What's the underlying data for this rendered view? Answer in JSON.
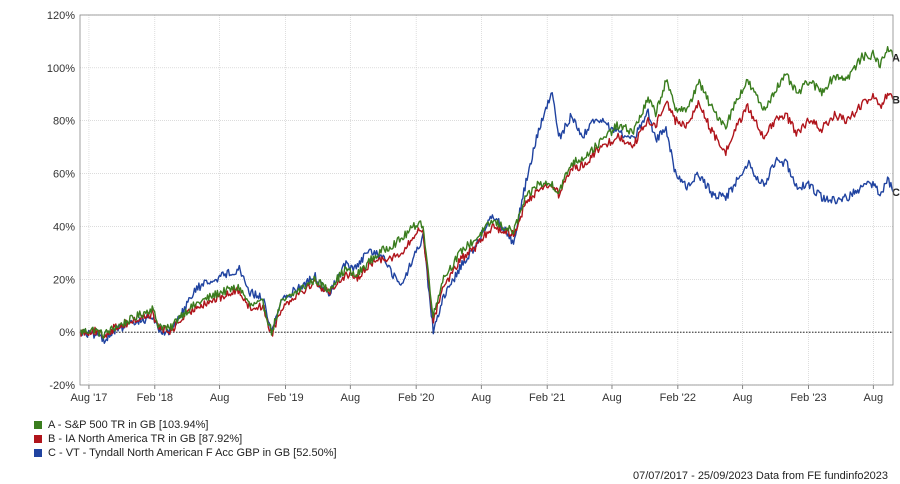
{
  "chart_data": {
    "type": "line",
    "x_ticks": [
      "Aug '17",
      "Feb '18",
      "Aug",
      "Feb '19",
      "Aug",
      "Feb '20",
      "Aug",
      "Feb '21",
      "Aug",
      "Feb '22",
      "Aug",
      "Feb '23",
      "Aug"
    ],
    "y_ticks": [
      "120%",
      "100%",
      "80%",
      "60%",
      "40%",
      "20%",
      "0%",
      "-20%"
    ],
    "ylim": [
      -20,
      120
    ],
    "x_range": [
      "2017-07-07",
      "2023-09-25"
    ],
    "grid": true,
    "legend_position": "bottom-left",
    "series": [
      {
        "name": "A - S&P 500 TR in GB [103.94%]",
        "end_label": "A",
        "color": "#3a7d1e",
        "points": [
          [
            "2017-07-07",
            0
          ],
          [
            "2017-08-15",
            1
          ],
          [
            "2017-09-10",
            -1
          ],
          [
            "2017-10-15",
            2
          ],
          [
            "2017-11-30",
            5
          ],
          [
            "2018-01-25",
            9
          ],
          [
            "2018-02-10",
            3
          ],
          [
            "2018-03-15",
            1
          ],
          [
            "2018-04-10",
            6
          ],
          [
            "2018-06-01",
            11
          ],
          [
            "2018-08-01",
            15
          ],
          [
            "2018-09-25",
            17
          ],
          [
            "2018-10-25",
            10
          ],
          [
            "2018-11-30",
            11
          ],
          [
            "2018-12-24",
            0
          ],
          [
            "2019-01-20",
            11
          ],
          [
            "2019-03-01",
            15
          ],
          [
            "2019-04-25",
            20
          ],
          [
            "2019-05-30",
            16
          ],
          [
            "2019-07-20",
            24
          ],
          [
            "2019-08-15",
            21
          ],
          [
            "2019-09-25",
            27
          ],
          [
            "2019-11-01",
            31
          ],
          [
            "2019-12-20",
            35
          ],
          [
            "2020-02-10",
            42
          ],
          [
            "2020-02-20",
            40
          ],
          [
            "2020-03-20",
            6
          ],
          [
            "2020-04-15",
            20
          ],
          [
            "2020-06-08",
            31
          ],
          [
            "2020-07-15",
            35
          ],
          [
            "2020-09-01",
            42
          ],
          [
            "2020-10-30",
            38
          ],
          [
            "2020-12-01",
            50
          ],
          [
            "2021-01-05",
            56
          ],
          [
            "2021-02-15",
            56
          ],
          [
            "2021-03-05",
            53
          ],
          [
            "2021-04-10",
            64
          ],
          [
            "2021-05-12",
            66
          ],
          [
            "2021-06-15",
            70
          ],
          [
            "2021-08-15",
            78
          ],
          [
            "2021-09-30",
            76
          ],
          [
            "2021-11-10",
            88
          ],
          [
            "2021-12-01",
            83
          ],
          [
            "2021-12-30",
            95
          ],
          [
            "2022-01-25",
            85
          ],
          [
            "2022-03-01",
            84
          ],
          [
            "2022-03-30",
            95
          ],
          [
            "2022-05-10",
            84
          ],
          [
            "2022-06-15",
            78
          ],
          [
            "2022-07-15",
            88
          ],
          [
            "2022-08-15",
            95
          ],
          [
            "2022-09-30",
            84
          ],
          [
            "2022-11-01",
            92
          ],
          [
            "2022-12-01",
            97
          ],
          [
            "2023-01-01",
            90
          ],
          [
            "2023-02-01",
            95
          ],
          [
            "2023-03-10",
            91
          ],
          [
            "2023-04-15",
            97
          ],
          [
            "2023-05-20",
            96
          ],
          [
            "2023-06-30",
            104
          ],
          [
            "2023-07-31",
            105
          ],
          [
            "2023-08-20",
            101
          ],
          [
            "2023-09-10",
            108
          ],
          [
            "2023-09-25",
            104
          ]
        ]
      },
      {
        "name": "B - IA North America TR in GB [87.92%]",
        "end_label": "B",
        "color": "#b0141b",
        "points": [
          [
            "2017-07-07",
            0
          ],
          [
            "2017-08-15",
            0.5
          ],
          [
            "2017-09-10",
            -1.5
          ],
          [
            "2017-10-15",
            2
          ],
          [
            "2017-11-30",
            4
          ],
          [
            "2018-01-25",
            7
          ],
          [
            "2018-02-10",
            2
          ],
          [
            "2018-03-15",
            0
          ],
          [
            "2018-04-10",
            4
          ],
          [
            "2018-06-01",
            10
          ],
          [
            "2018-08-01",
            13
          ],
          [
            "2018-09-25",
            16
          ],
          [
            "2018-10-25",
            9
          ],
          [
            "2018-11-30",
            10
          ],
          [
            "2018-12-24",
            -1
          ],
          [
            "2019-01-20",
            9
          ],
          [
            "2019-03-01",
            14
          ],
          [
            "2019-04-25",
            19
          ],
          [
            "2019-05-30",
            15
          ],
          [
            "2019-07-20",
            22
          ],
          [
            "2019-08-15",
            20
          ],
          [
            "2019-09-25",
            26
          ],
          [
            "2019-11-01",
            28
          ],
          [
            "2019-12-20",
            29
          ],
          [
            "2020-02-10",
            39
          ],
          [
            "2020-02-20",
            38
          ],
          [
            "2020-03-20",
            4
          ],
          [
            "2020-04-15",
            17
          ],
          [
            "2020-06-08",
            28
          ],
          [
            "2020-07-15",
            32
          ],
          [
            "2020-09-01",
            40
          ],
          [
            "2020-10-30",
            37
          ],
          [
            "2020-12-01",
            48
          ],
          [
            "2021-01-05",
            54
          ],
          [
            "2021-02-15",
            56
          ],
          [
            "2021-03-05",
            52
          ],
          [
            "2021-04-10",
            62
          ],
          [
            "2021-05-12",
            63
          ],
          [
            "2021-06-15",
            68
          ],
          [
            "2021-08-15",
            74
          ],
          [
            "2021-09-30",
            71
          ],
          [
            "2021-11-10",
            80
          ],
          [
            "2021-12-01",
            78
          ],
          [
            "2021-12-30",
            88
          ],
          [
            "2022-01-25",
            80
          ],
          [
            "2022-03-01",
            78
          ],
          [
            "2022-03-30",
            87
          ],
          [
            "2022-05-10",
            75
          ],
          [
            "2022-06-15",
            68
          ],
          [
            "2022-07-15",
            78
          ],
          [
            "2022-08-15",
            85
          ],
          [
            "2022-09-30",
            74
          ],
          [
            "2022-11-01",
            80
          ],
          [
            "2022-12-01",
            82
          ],
          [
            "2023-01-01",
            75
          ],
          [
            "2023-02-01",
            80
          ],
          [
            "2023-03-10",
            77
          ],
          [
            "2023-04-15",
            82
          ],
          [
            "2023-05-20",
            80
          ],
          [
            "2023-06-30",
            86
          ],
          [
            "2023-07-31",
            89
          ],
          [
            "2023-08-20",
            85
          ],
          [
            "2023-09-10",
            90
          ],
          [
            "2023-09-25",
            88
          ]
        ]
      },
      {
        "name": "C - VT - Tyndall North American F Acc GBP in GB [52.50%]",
        "end_label": "C",
        "color": "#2043a0",
        "points": [
          [
            "2017-07-07",
            0
          ],
          [
            "2017-08-15",
            -1
          ],
          [
            "2017-09-10",
            -3
          ],
          [
            "2017-10-15",
            1
          ],
          [
            "2017-11-30",
            3
          ],
          [
            "2018-01-25",
            6
          ],
          [
            "2018-02-10",
            1
          ],
          [
            "2018-03-15",
            0
          ],
          [
            "2018-04-10",
            6
          ],
          [
            "2018-06-01",
            17
          ],
          [
            "2018-08-01",
            21
          ],
          [
            "2018-09-25",
            24
          ],
          [
            "2018-10-25",
            15
          ],
          [
            "2018-11-30",
            13
          ],
          [
            "2018-12-24",
            0
          ],
          [
            "2019-01-20",
            12
          ],
          [
            "2019-03-01",
            16
          ],
          [
            "2019-04-25",
            21
          ],
          [
            "2019-05-30",
            14
          ],
          [
            "2019-07-20",
            26
          ],
          [
            "2019-08-15",
            24
          ],
          [
            "2019-09-25",
            31
          ],
          [
            "2019-11-01",
            28
          ],
          [
            "2019-12-20",
            17
          ],
          [
            "2020-02-10",
            33
          ],
          [
            "2020-02-20",
            36
          ],
          [
            "2020-03-20",
            0
          ],
          [
            "2020-04-15",
            12
          ],
          [
            "2020-06-08",
            26
          ],
          [
            "2020-07-15",
            32
          ],
          [
            "2020-09-01",
            45
          ],
          [
            "2020-10-30",
            34
          ],
          [
            "2020-12-01",
            55
          ],
          [
            "2021-01-05",
            75
          ],
          [
            "2021-02-15",
            91
          ],
          [
            "2021-03-05",
            73
          ],
          [
            "2021-04-10",
            82
          ],
          [
            "2021-05-12",
            74
          ],
          [
            "2021-06-15",
            81
          ],
          [
            "2021-08-15",
            76
          ],
          [
            "2021-09-30",
            73
          ],
          [
            "2021-11-10",
            83
          ],
          [
            "2021-12-01",
            73
          ],
          [
            "2021-12-30",
            77
          ],
          [
            "2022-01-25",
            60
          ],
          [
            "2022-03-01",
            55
          ],
          [
            "2022-03-30",
            60
          ],
          [
            "2022-05-10",
            52
          ],
          [
            "2022-06-15",
            51
          ],
          [
            "2022-07-15",
            57
          ],
          [
            "2022-08-15",
            64
          ],
          [
            "2022-09-30",
            55
          ],
          [
            "2022-11-01",
            65
          ],
          [
            "2022-12-01",
            64
          ],
          [
            "2023-01-01",
            55
          ],
          [
            "2023-02-01",
            56
          ],
          [
            "2023-03-10",
            51
          ],
          [
            "2023-04-15",
            50
          ],
          [
            "2023-05-20",
            51
          ],
          [
            "2023-06-30",
            55
          ],
          [
            "2023-07-31",
            56
          ],
          [
            "2023-08-20",
            52
          ],
          [
            "2023-09-10",
            58
          ],
          [
            "2023-09-25",
            53
          ]
        ]
      }
    ]
  },
  "footer": {
    "text": "07/07/2017 - 25/09/2023 Data from FE fundinfo2023"
  }
}
